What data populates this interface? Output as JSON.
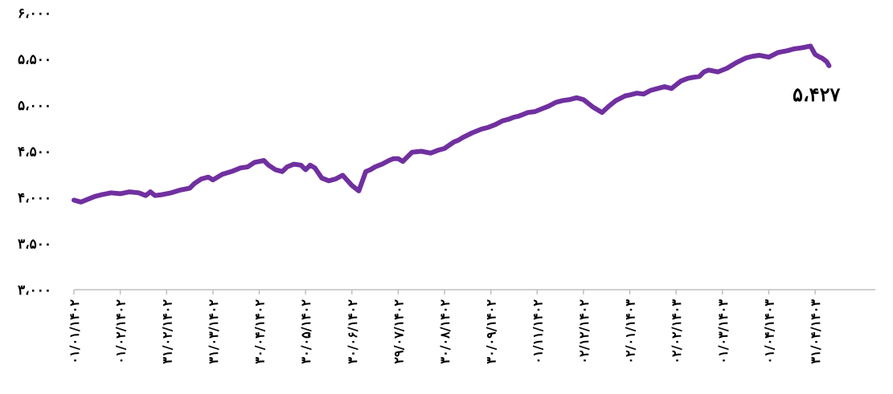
{
  "colors": {
    "line": "#7030a0",
    "axis": "#bfbfbf"
  },
  "chart_data": {
    "type": "line",
    "ylim": [
      3000,
      6000
    ],
    "y_ticks": [
      {
        "value": 3000,
        "label": "۳،۰۰۰"
      },
      {
        "value": 3500,
        "label": "۳،۵۰۰"
      },
      {
        "value": 4000,
        "label": "۴،۰۰۰"
      },
      {
        "value": 4500,
        "label": "۴،۵۰۰"
      },
      {
        "value": 5000,
        "label": "۵،۰۰۰"
      },
      {
        "value": 5500,
        "label": "۵،۵۰۰"
      },
      {
        "value": 6000,
        "label": "۶،۰۰۰"
      }
    ],
    "x_tick_labels": [
      "۰۱/۰۱/۱۴۰۲",
      "۰۱/۰۲/۱۴۰۲",
      "۳۱/۰۲/۱۴۰۲",
      "۳۱/۰۳/۱۴۰۲",
      "۳۰/۰۴/۱۴۰۲",
      "۳۰/۰۵/۱۴۰۲",
      "۳۰/۰۶/۱۴۰۲",
      "۲۹/۰۷/۱۴۰۲",
      "۳۰/۰۸/۱۴۰۲",
      "۳۰/۰۹/۱۴۰۲",
      "۰۱/۱۱/۱۴۰۲",
      "۰۲/۱۲/۱۴۰۲",
      "۰۲/۰۱/۱۴۰۳",
      "۰۲/۰۲/۱۴۰۳",
      "۰۱/۰۳/۱۴۰۳",
      "۰۱/۰۴/۱۴۰۳",
      "۳۱/۰۴/۱۴۰۳"
    ],
    "x_span": [
      0,
      17.3
    ],
    "series": [
      {
        "x": [
          0,
          0.15,
          0.3,
          0.45,
          0.6,
          0.8,
          1.0,
          1.2,
          1.4,
          1.55,
          1.65,
          1.75,
          1.9,
          2.0,
          2.1,
          2.3,
          2.5,
          2.6,
          2.75,
          2.9,
          3.0,
          3.2,
          3.4,
          3.6,
          3.75,
          3.9,
          4.0,
          4.1,
          4.2,
          4.35,
          4.5,
          4.6,
          4.75,
          4.9,
          5.0,
          5.1,
          5.2,
          5.35,
          5.5,
          5.65,
          5.8,
          6.0,
          6.15,
          6.3,
          6.4,
          6.5,
          6.65,
          6.8,
          6.9,
          7.0,
          7.1,
          7.2,
          7.3,
          7.5,
          7.7,
          7.85,
          8.0,
          8.2,
          8.3,
          8.4,
          8.6,
          8.8,
          8.95,
          9.1,
          9.25,
          9.4,
          9.5,
          9.6,
          9.8,
          9.95,
          10.1,
          10.25,
          10.4,
          10.55,
          10.7,
          10.85,
          11.0,
          11.2,
          11.4,
          11.55,
          11.7,
          11.9,
          12.0,
          12.15,
          12.3,
          12.45,
          12.6,
          12.75,
          12.9,
          13.0,
          13.1,
          13.25,
          13.35,
          13.5,
          13.6,
          13.7,
          13.9,
          14.1,
          14.3,
          14.5,
          14.65,
          14.8,
          15.0,
          15.2,
          15.4,
          15.55,
          15.7,
          15.9,
          16.0,
          16.1,
          16.15,
          16.25,
          16.3
        ],
        "values": [
          3970,
          3950,
          3980,
          4010,
          4030,
          4050,
          4040,
          4060,
          4050,
          4020,
          4060,
          4020,
          4030,
          4040,
          4050,
          4080,
          4100,
          4150,
          4200,
          4220,
          4190,
          4250,
          4280,
          4320,
          4330,
          4380,
          4390,
          4400,
          4350,
          4300,
          4280,
          4330,
          4360,
          4350,
          4300,
          4350,
          4320,
          4210,
          4180,
          4200,
          4240,
          4130,
          4070,
          4280,
          4300,
          4330,
          4360,
          4400,
          4420,
          4420,
          4390,
          4440,
          4490,
          4500,
          4480,
          4510,
          4530,
          4600,
          4620,
          4650,
          4700,
          4740,
          4760,
          4790,
          4830,
          4850,
          4870,
          4880,
          4920,
          4930,
          4960,
          4990,
          5030,
          5050,
          5060,
          5080,
          5060,
          4980,
          4920,
          4990,
          5050,
          5100,
          5110,
          5130,
          5120,
          5160,
          5180,
          5200,
          5180,
          5220,
          5260,
          5290,
          5300,
          5310,
          5360,
          5380,
          5360,
          5400,
          5460,
          5510,
          5530,
          5540,
          5520,
          5570,
          5590,
          5610,
          5620,
          5640,
          5550,
          5520,
          5510,
          5470,
          5427
        ]
      }
    ],
    "last_value_label": "۵،۴۲۷"
  }
}
